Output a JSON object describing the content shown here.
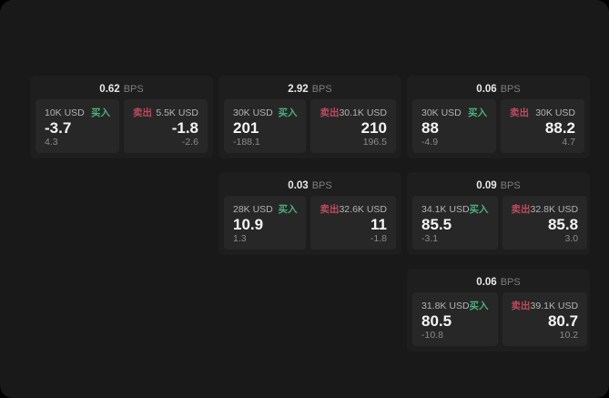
{
  "labels": {
    "buy": "买入",
    "sell": "卖出",
    "unit": "BPS"
  },
  "colors": {
    "background": "#000000",
    "panel_background": "#191919",
    "card_background": "#1e1e1e",
    "tile_background": "#272727",
    "buy_green": "#4caf7d",
    "sell_red": "#bf4a5e"
  },
  "cards": [
    {
      "bps": "0.62",
      "buy": {
        "amount": "10K USD",
        "value": "-3.7",
        "sub": "4.3"
      },
      "sell": {
        "amount": "5.5K USD",
        "value": "-1.8",
        "sub": "-2.6"
      }
    },
    {
      "bps": "2.92",
      "buy": {
        "amount": "30K USD",
        "value": "201",
        "sub": "-188.1"
      },
      "sell": {
        "amount": "30.1K USD",
        "value": "210",
        "sub": "196.5"
      }
    },
    {
      "bps": "0.06",
      "buy": {
        "amount": "30K USD",
        "value": "88",
        "sub": "-4.9"
      },
      "sell": {
        "amount": "30K USD",
        "value": "88.2",
        "sub": "4.7"
      }
    },
    {
      "bps": "0.03",
      "buy": {
        "amount": "28K USD",
        "value": "10.9",
        "sub": "1.3"
      },
      "sell": {
        "amount": "32.6K USD",
        "value": "11",
        "sub": "-1.8"
      }
    },
    {
      "bps": "0.09",
      "buy": {
        "amount": "34.1K USD",
        "value": "85.5",
        "sub": "-3.1"
      },
      "sell": {
        "amount": "32.8K USD",
        "value": "85.8",
        "sub": "3.0"
      }
    },
    {
      "bps": "0.06",
      "buy": {
        "amount": "31.8K USD",
        "value": "80.5",
        "sub": "-10.8"
      },
      "sell": {
        "amount": "39.1K USD",
        "value": "80.7",
        "sub": "10.2"
      }
    }
  ]
}
